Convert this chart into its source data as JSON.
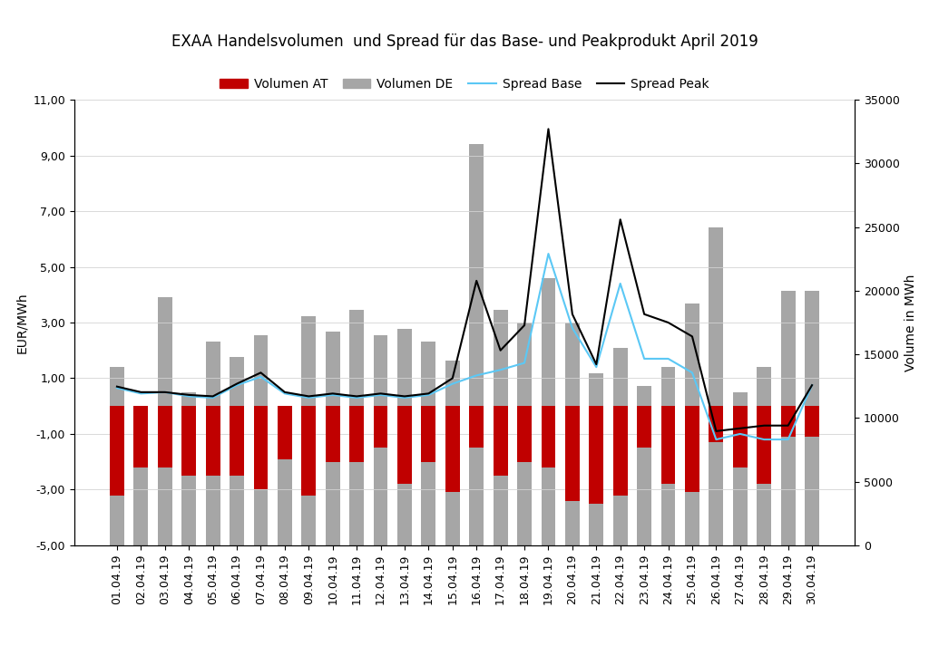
{
  "title": "EXAA Handelsvolumen  und Spread für das Base- und Peakprodukt April 2019",
  "dates": [
    "01.04.19",
    "02.04.19",
    "03.04.19",
    "04.04.19",
    "05.04.19",
    "06.04.19",
    "07.04.19",
    "08.04.19",
    "09.04.19",
    "10.04.19",
    "11.04.19",
    "12.04.19",
    "13.04.19",
    "14.04.19",
    "15.04.19",
    "16.04.19",
    "17.04.19",
    "18.04.19",
    "19.04.19",
    "20.04.19",
    "21.04.19",
    "22.04.19",
    "23.04.19",
    "24.04.19",
    "25.04.19",
    "26.04.19",
    "27.04.19",
    "28.04.19",
    "29.04.19",
    "30.04.19"
  ],
  "volumen_AT": [
    -3.2,
    -2.2,
    -2.2,
    -2.5,
    -2.5,
    -2.5,
    -3.0,
    -1.9,
    -3.2,
    -2.0,
    -2.0,
    -1.5,
    -2.8,
    -2.0,
    -3.1,
    -1.5,
    -2.5,
    -2.0,
    -2.2,
    -3.4,
    -3.5,
    -3.2,
    -1.5,
    -2.8,
    -3.1,
    -1.3,
    -2.2,
    -2.8,
    -1.1,
    -1.1
  ],
  "volumen_DE": [
    14000,
    10500,
    19500,
    12000,
    16000,
    14800,
    16500,
    10500,
    18000,
    16800,
    18500,
    16500,
    17000,
    16000,
    14500,
    31500,
    18500,
    17500,
    21000,
    17500,
    13500,
    15500,
    12500,
    14000,
    19000,
    25000,
    12000,
    14000,
    20000,
    20000
  ],
  "spread_base": [
    0.65,
    0.45,
    0.5,
    0.35,
    0.3,
    0.75,
    1.05,
    0.45,
    0.3,
    0.4,
    0.3,
    0.4,
    0.3,
    0.4,
    0.8,
    1.1,
    1.3,
    1.55,
    5.47,
    2.8,
    1.4,
    4.4,
    1.7,
    1.7,
    1.2,
    -1.2,
    -1.0,
    -1.2,
    -1.2,
    0.75
  ],
  "spread_peak": [
    0.7,
    0.5,
    0.5,
    0.4,
    0.35,
    0.8,
    1.2,
    0.5,
    0.35,
    0.45,
    0.35,
    0.45,
    0.35,
    0.45,
    1.0,
    4.5,
    2.0,
    2.9,
    9.95,
    3.3,
    1.5,
    6.7,
    3.3,
    3.0,
    2.5,
    -0.9,
    -0.8,
    -0.7,
    -0.7,
    0.75
  ],
  "ylabel_left": "EUR/MWh",
  "ylabel_right": "Volume in MWh",
  "ylim_left": [
    -5.0,
    11.0
  ],
  "ylim_right": [
    0,
    35000
  ],
  "yticks_left": [
    -5.0,
    -3.0,
    -1.0,
    1.0,
    3.0,
    5.0,
    7.0,
    9.0,
    11.0
  ],
  "ytick_labels_left": [
    "-5,00",
    "-3,00",
    "-1,00",
    "1,00",
    "3,00",
    "5,00",
    "7,00",
    "9,00",
    "11,00"
  ],
  "yticks_right": [
    0,
    5000,
    10000,
    15000,
    20000,
    25000,
    30000,
    35000
  ],
  "color_AT": "#c00000",
  "color_DE": "#a6a6a6",
  "color_base": "#5bc8f5",
  "color_peak": "#000000",
  "legend_labels": [
    "Volumen AT",
    "Volumen DE",
    "Spread Base",
    "Spread Peak"
  ],
  "bar_width": 0.6,
  "title_fontsize": 12,
  "axis_fontsize": 10,
  "tick_fontsize": 9
}
